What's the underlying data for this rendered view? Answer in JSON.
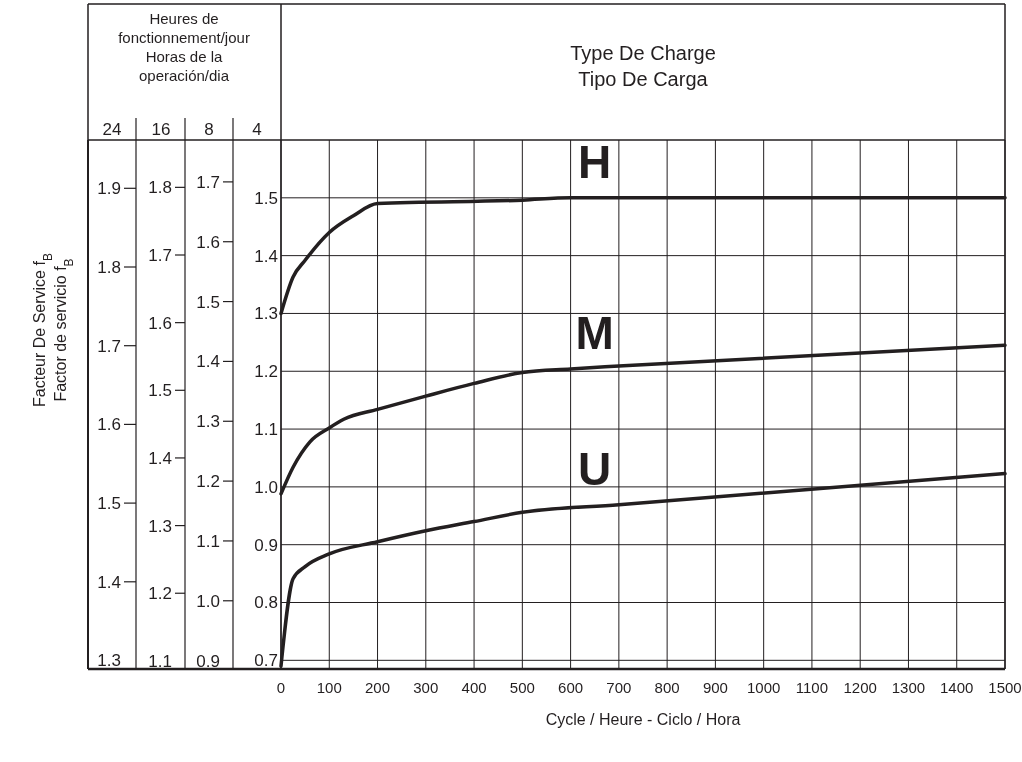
{
  "chart_data": {
    "type": "line",
    "title": "Type De Charge\nTipo De Carga",
    "xlabel": "Cycle / Heure - Ciclo / Hora",
    "ylabel": "4",
    "y2label": "8",
    "y3label": "16",
    "annotations": [
      "Heures de\nfonctionnement/jour\nHoras de la\noperación/dia",
      "Facteur  De Service f$_{B}$\nFactor  de  servicio f$_{B}$",
      "24",
      "1.3",
      "1.4",
      "1.5",
      "1.6",
      "1.7",
      "1.8",
      "1.9"
    ],
    "xlim": [
      0,
      1500
    ],
    "xticks": [
      0,
      100,
      200,
      300,
      400,
      500,
      600,
      700,
      800,
      900,
      1000,
      1100,
      1200,
      1300,
      1400,
      1500
    ],
    "ylim": [
      0.685,
      1.6
    ],
    "yticks": [
      0.7,
      0.8,
      0.9,
      {
        "value": 1,
        "label": "1.0"
      },
      1.1,
      1.2,
      1.3,
      1.4,
      1.5
    ],
    "y2lim": [
      0.886,
      1.77
    ],
    "y2ticks": [
      0.9,
      {
        "value": 1,
        "label": "1.0"
      },
      1.1,
      1.2,
      1.3,
      1.4,
      1.5,
      1.6,
      1.7
    ],
    "y3lim": [
      1.088,
      1.87
    ],
    "y3ticks": [
      1.1,
      1.2,
      1.3,
      1.4,
      1.5,
      1.6,
      1.7,
      1.8
    ],
    "grid": true,
    "series": [
      {
        "name": "H",
        "color": "#231f20",
        "x": [
          0,
          25,
          50,
          100,
          150,
          200,
          500,
          600,
          1500
        ],
        "values": [
          1.3,
          1.363,
          1.392,
          1.44,
          1.469,
          1.49,
          1.496,
          1.5,
          1.5
        ]
      },
      {
        "name": "M",
        "color": "#231f20",
        "x": [
          0,
          25,
          60,
          100,
          130,
          200,
          300,
          400,
          500,
          600,
          700,
          1500
        ],
        "values": [
          0.988,
          1.034,
          1.078,
          1.102,
          1.117,
          1.134,
          1.157,
          1.179,
          1.198,
          1.204,
          1.209,
          1.245
        ]
      },
      {
        "name": "U",
        "color": "#231f20",
        "x": [
          0,
          25,
          50,
          100,
          200,
          300,
          400,
          500,
          700,
          1500
        ],
        "values": [
          0.69,
          0.841,
          0.862,
          0.884,
          0.905,
          0.924,
          0.94,
          0.956,
          0.969,
          1.023
        ]
      }
    ]
  }
}
